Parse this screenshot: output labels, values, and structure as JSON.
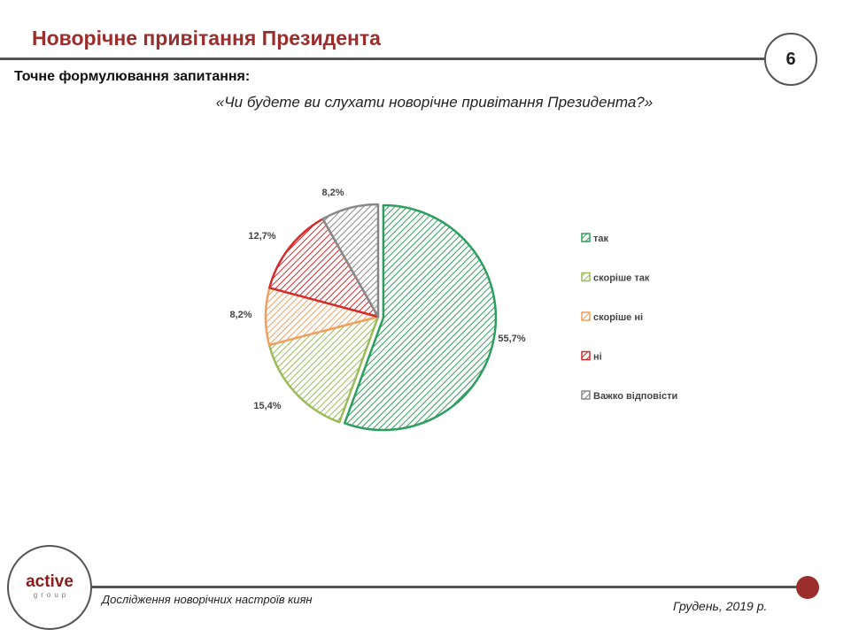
{
  "header": {
    "title": "Новорічне привітання Президента",
    "page_number": "6"
  },
  "question": {
    "label": "Точне формулювання запитання:",
    "text": "«Чи будете ви слухати новорічне привітання Президента?»"
  },
  "chart_data": {
    "type": "pie",
    "legend_position": "right",
    "slices": [
      {
        "name": "так",
        "value": 55.7,
        "label": "55,7%",
        "color": "#2e9e5e"
      },
      {
        "name": "скоріше так",
        "value": 15.4,
        "label": "15,4%",
        "color": "#9bbb59"
      },
      {
        "name": "скоріше ні",
        "value": 8.2,
        "label": "8,2%",
        "color": "#f0a060"
      },
      {
        "name": "ні",
        "value": 12.7,
        "label": "12,7%",
        "color": "#d42a2a"
      },
      {
        "name": "Важко відповісти",
        "value": 8.2,
        "label": "8,2%",
        "color": "#888888"
      }
    ]
  },
  "footer": {
    "logo_main": "active",
    "logo_sub": "group",
    "study": "Дослідження новорічних настроїв киян",
    "date": "Грудень, 2019 р.",
    "accent": "#9b2d2d"
  }
}
